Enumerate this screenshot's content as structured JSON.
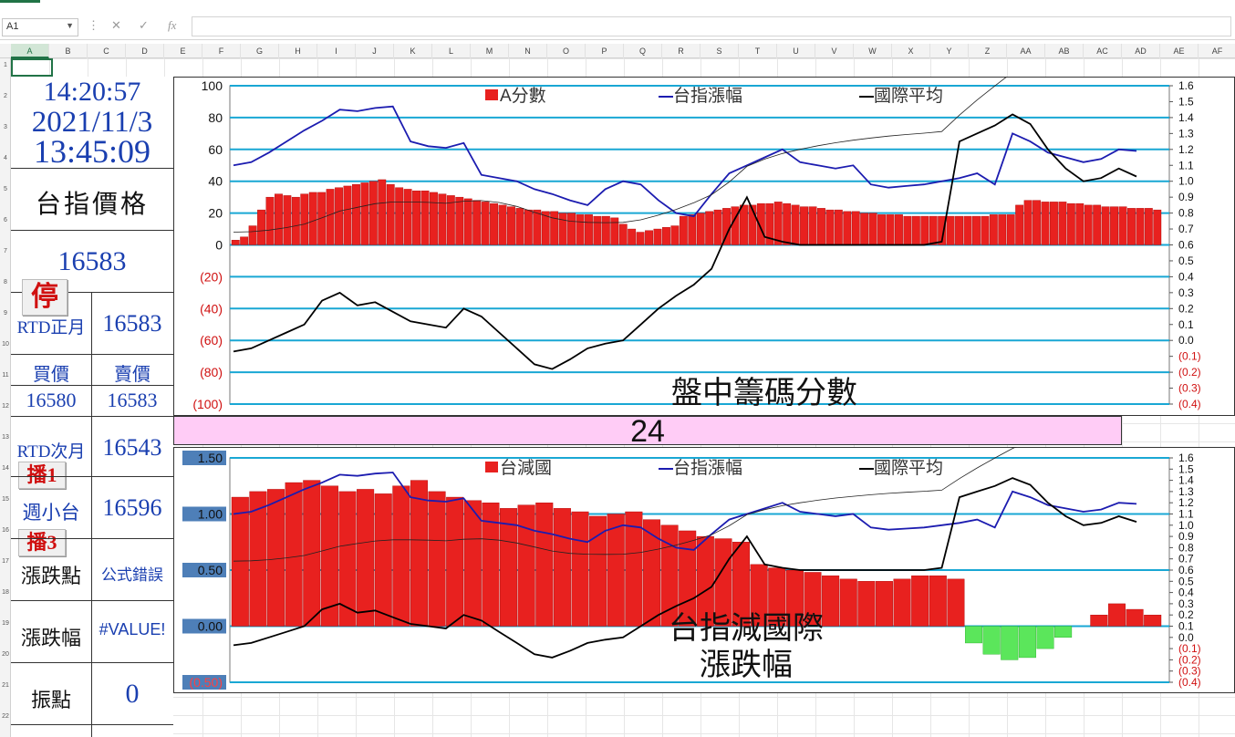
{
  "formula_bar": {
    "namebox": "A1",
    "cancel": "✕",
    "enter": "✓",
    "fx": "fx",
    "formula": ""
  },
  "columns": [
    "A",
    "B",
    "C",
    "D",
    "E",
    "F",
    "G",
    "H",
    "I",
    "J",
    "K",
    "L",
    "M",
    "N",
    "O",
    "P",
    "Q",
    "R",
    "S",
    "T",
    "U",
    "V",
    "W",
    "X",
    "Y",
    "Z",
    "AA",
    "AB",
    "AC",
    "AD",
    "AE",
    "AF"
  ],
  "rows": [
    "1",
    "2",
    "3",
    "4",
    "5",
    "6",
    "7",
    "8",
    "9",
    "10",
    "11",
    "12",
    "13",
    "14",
    "15",
    "16",
    "17",
    "18",
    "19",
    "20",
    "21",
    "22"
  ],
  "left_panel": {
    "time": "14:20:57",
    "date": "2021/11/3",
    "time2": "13:45:09",
    "price_label": "台指價格",
    "price": "16583",
    "stop_button": "停",
    "rtd_front_label": "RTD正月",
    "rtd_front_value": "16583",
    "bid_label": "買價",
    "ask_label": "賣價",
    "bid": "16580",
    "ask": "16583",
    "rtd_next_label": "RTD次月",
    "rtd_next_value": "16543",
    "play1_button": "播1",
    "weekly_label": "週小台",
    "weekly_value": "16596",
    "play3_button": "播3",
    "change_pts_label": "漲跌點",
    "change_pts_value": "公式錯誤",
    "change_pct_label": "漲跌幅",
    "change_pct_value": "#VALUE!",
    "amplitude_label": "振點",
    "amplitude_value": "0"
  },
  "pink_band_value": "24",
  "colors": {
    "bar": "#e8211f",
    "bar_neg": "#5be65b",
    "blue_line": "#1c1cb0",
    "black_line": "#000000",
    "gridline": "#19a7d4",
    "negative_tick": "#d01010"
  },
  "chart_data": [
    {
      "type": "bar",
      "title": "盤中籌碼分數",
      "legend": [
        "A分數",
        "台指漲幅",
        "國際平均"
      ],
      "legend_placement": "top",
      "y_left_ticks": [
        "100",
        "80",
        "60",
        "40",
        "20",
        "0",
        "(20)",
        "(40)",
        "(60)",
        "(80)",
        "(100)"
      ],
      "y_left_range": [
        -100,
        100
      ],
      "y_right_ticks": [
        "1.6",
        "1.5",
        "1.4",
        "1.3",
        "1.2",
        "1.1",
        "1.0",
        "0.9",
        "0.8",
        "0.7",
        "0.6",
        "0.5",
        "0.4",
        "0.3",
        "0.2",
        "0.1",
        "0.0",
        "(0.1)",
        "(0.2)",
        "(0.3)",
        "(0.4)"
      ],
      "y_right_range": [
        -0.4,
        1.6
      ],
      "grid": true,
      "series": [
        {
          "name": "A分數",
          "kind": "bar",
          "values": [
            3,
            5,
            12,
            22,
            30,
            32,
            31,
            30,
            32,
            33,
            33,
            35,
            36,
            37,
            38,
            39,
            40,
            41,
            38,
            36,
            35,
            34,
            34,
            33,
            32,
            31,
            30,
            29,
            28,
            27,
            26,
            25,
            24,
            23,
            22,
            22,
            21,
            21,
            20,
            20,
            19,
            19,
            18,
            18,
            17,
            13,
            10,
            8,
            9,
            10,
            11,
            12,
            18,
            19,
            20,
            21,
            22,
            23,
            24,
            25,
            25,
            26,
            26,
            27,
            26,
            25,
            24,
            24,
            23,
            22,
            22,
            21,
            21,
            20,
            20,
            19,
            19,
            19,
            18,
            18,
            18,
            18,
            18,
            18,
            18,
            18,
            18,
            18,
            19,
            19,
            19,
            25,
            28,
            28,
            27,
            27,
            27,
            26,
            26,
            25,
            25,
            24,
            24,
            24,
            23,
            23,
            23,
            22
          ]
        },
        {
          "name": "台指漲幅",
          "kind": "line",
          "values": [
            1.1,
            1.12,
            1.18,
            1.25,
            1.32,
            1.38,
            1.45,
            1.44,
            1.46,
            1.47,
            1.25,
            1.22,
            1.21,
            1.24,
            1.04,
            1.02,
            1.0,
            0.95,
            0.92,
            0.88,
            0.85,
            0.95,
            1.0,
            0.98,
            0.88,
            0.8,
            0.78,
            0.92,
            1.05,
            1.1,
            1.15,
            1.2,
            1.12,
            1.1,
            1.08,
            1.1,
            0.98,
            0.96,
            0.97,
            0.98,
            1.0,
            1.02,
            1.05,
            0.98,
            1.3,
            1.25,
            1.18,
            1.15,
            1.12,
            1.14,
            1.2,
            1.19
          ]
        },
        {
          "name": "國際平均",
          "kind": "line",
          "values": [
            -0.07,
            -0.05,
            0.0,
            0.05,
            0.1,
            0.25,
            0.3,
            0.22,
            0.24,
            0.18,
            0.12,
            0.1,
            0.08,
            0.2,
            0.15,
            0.05,
            -0.05,
            -0.15,
            -0.18,
            -0.12,
            -0.05,
            -0.02,
            0.0,
            0.1,
            0.2,
            0.28,
            0.35,
            0.45,
            0.7,
            0.9,
            0.65,
            0.62,
            0.6,
            0.6,
            0.6,
            0.6,
            0.6,
            0.6,
            0.6,
            0.6,
            0.62,
            1.25,
            1.3,
            1.35,
            1.42,
            1.36,
            1.2,
            1.08,
            1.0,
            1.02,
            1.08,
            1.03
          ]
        }
      ]
    },
    {
      "type": "bar",
      "title": "台指減國際 漲跌幅",
      "legend": [
        "台減國",
        "台指漲幅",
        "國際平均"
      ],
      "legend_placement": "top",
      "y_left_ticks": [
        "1.50",
        "1.00",
        "0.50",
        "0.00",
        "(0.50)"
      ],
      "y_left_range": [
        -0.5,
        1.5
      ],
      "y_right_ticks": [
        "1.6",
        "1.5",
        "1.4",
        "1.3",
        "1.2",
        "1.1",
        "1.0",
        "0.9",
        "0.8",
        "0.7",
        "0.6",
        "0.5",
        "0.4",
        "0.3",
        "0.2",
        "0.1",
        "0.0",
        "(0.1)",
        "(0.2)",
        "(0.3)",
        "(0.4)"
      ],
      "y_right_range": [
        -0.4,
        1.6
      ],
      "grid": true,
      "series": [
        {
          "name": "台減國",
          "kind": "bar",
          "values": [
            1.15,
            1.2,
            1.22,
            1.28,
            1.3,
            1.25,
            1.2,
            1.22,
            1.18,
            1.25,
            1.3,
            1.2,
            1.15,
            1.12,
            1.1,
            1.05,
            1.08,
            1.1,
            1.05,
            1.02,
            0.98,
            1.0,
            1.02,
            0.95,
            0.9,
            0.85,
            0.8,
            0.78,
            0.75,
            0.55,
            0.52,
            0.5,
            0.48,
            0.45,
            0.42,
            0.4,
            0.4,
            0.42,
            0.45,
            0.45,
            0.42,
            -0.15,
            -0.25,
            -0.3,
            -0.28,
            -0.2,
            -0.1,
            0.0,
            0.1,
            0.2,
            0.15,
            0.1
          ]
        },
        {
          "name": "台指漲幅",
          "kind": "line",
          "values": [
            1.1,
            1.12,
            1.18,
            1.25,
            1.32,
            1.38,
            1.45,
            1.44,
            1.46,
            1.47,
            1.25,
            1.22,
            1.21,
            1.24,
            1.04,
            1.02,
            1.0,
            0.95,
            0.92,
            0.88,
            0.85,
            0.95,
            1.0,
            0.98,
            0.88,
            0.8,
            0.78,
            0.92,
            1.05,
            1.1,
            1.15,
            1.2,
            1.12,
            1.1,
            1.08,
            1.1,
            0.98,
            0.96,
            0.97,
            0.98,
            1.0,
            1.02,
            1.05,
            0.98,
            1.3,
            1.25,
            1.18,
            1.15,
            1.12,
            1.14,
            1.2,
            1.19
          ]
        },
        {
          "name": "國際平均",
          "kind": "line",
          "values": [
            -0.07,
            -0.05,
            0.0,
            0.05,
            0.1,
            0.25,
            0.3,
            0.22,
            0.24,
            0.18,
            0.12,
            0.1,
            0.08,
            0.2,
            0.15,
            0.05,
            -0.05,
            -0.15,
            -0.18,
            -0.12,
            -0.05,
            -0.02,
            0.0,
            0.1,
            0.2,
            0.28,
            0.35,
            0.45,
            0.7,
            0.9,
            0.65,
            0.62,
            0.6,
            0.6,
            0.6,
            0.6,
            0.6,
            0.6,
            0.6,
            0.6,
            0.62,
            1.25,
            1.3,
            1.35,
            1.42,
            1.36,
            1.2,
            1.08,
            1.0,
            1.02,
            1.08,
            1.03
          ]
        }
      ]
    }
  ]
}
